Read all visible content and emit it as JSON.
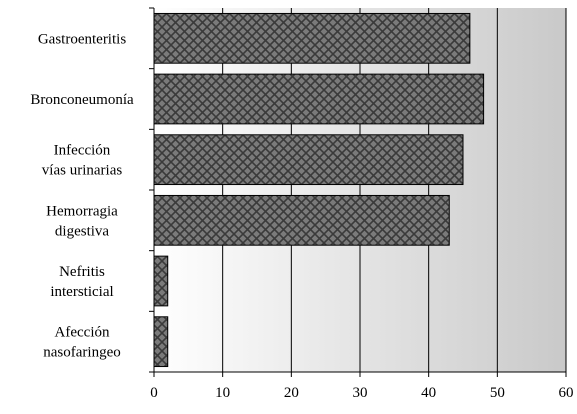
{
  "chart_data": {
    "type": "bar",
    "orientation": "horizontal",
    "categories": [
      [
        "Gastroenteritis"
      ],
      [
        "Bronconeumonía"
      ],
      [
        "Infección",
        "vías urinarias"
      ],
      [
        "Hemorragia",
        "digestiva"
      ],
      [
        "Nefritis",
        "intersticial"
      ],
      [
        "Afección",
        "nasofaringeo"
      ]
    ],
    "values": [
      46,
      48,
      45,
      43,
      2,
      2
    ],
    "xlim": [
      0,
      60
    ],
    "xticks": [
      "0",
      "10",
      "20",
      "30",
      "40",
      "50",
      "60"
    ],
    "grid": "vertical",
    "background": "gradient-white-to-gray",
    "bar_fill": "crosshatch",
    "colors": {
      "bar": "#7a7a7a",
      "bar_pattern": "#3a3a3a",
      "bar_stroke": "#000000",
      "grid": "#000000",
      "bg_start": "#ffffff",
      "bg_end": "#c9c9c9"
    }
  }
}
